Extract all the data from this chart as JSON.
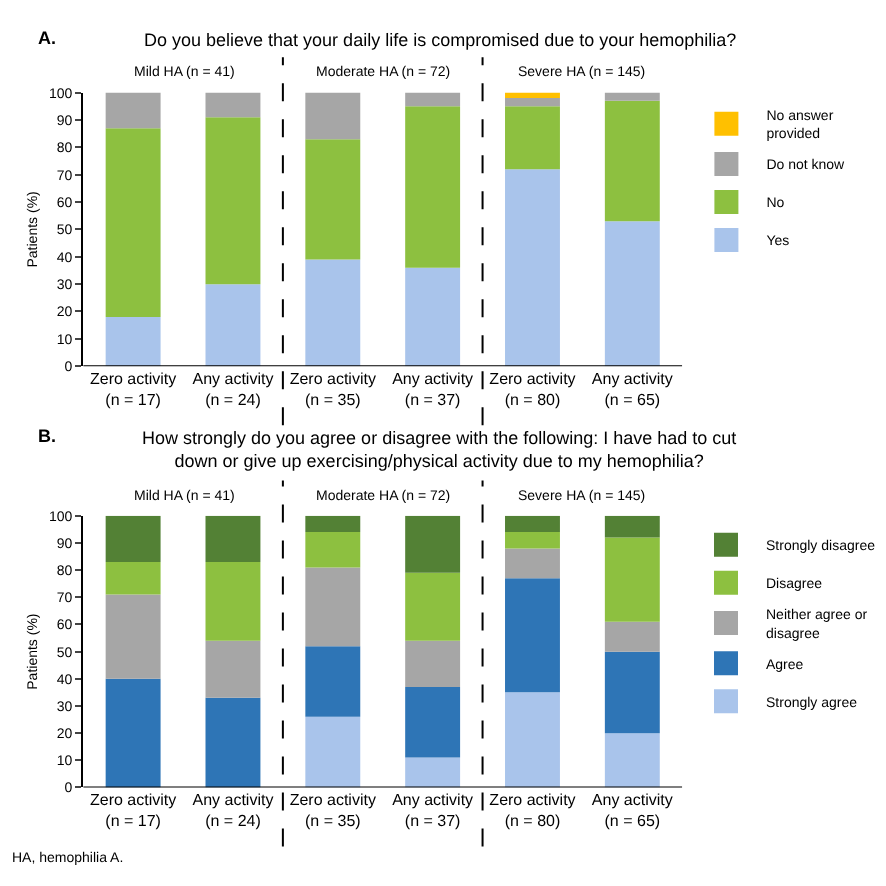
{
  "chart_data": [
    {
      "type": "bar",
      "stacked": true,
      "title": "Do you believe that your daily life is compromised due to your hemophilia?",
      "ylabel": "Patients (%)",
      "categories": [
        "Zero activity\n(n = 17)",
        "Any activity\n(n = 24)",
        "Zero activity\n(n = 35)",
        "Any activity\n(n = 37)",
        "Zero activity\n(n = 80)",
        "Any activity\n(n = 65)"
      ],
      "series": [
        {
          "name": "Yes",
          "color": "#a9c4eb",
          "values": [
            18,
            30,
            39,
            36,
            72,
            53
          ]
        },
        {
          "name": "No",
          "color": "#8dc040",
          "values": [
            69,
            61,
            44,
            59,
            23,
            44
          ]
        },
        {
          "name": "Do not know",
          "color": "#a6a6a6",
          "values": [
            13,
            9,
            17,
            5,
            3,
            3
          ]
        },
        {
          "name": "No answer provided",
          "color": "#ffc000",
          "values": [
            0,
            0,
            0,
            0,
            2,
            0
          ]
        }
      ],
      "ylim": [
        0,
        100
      ],
      "yticks": [
        0,
        10,
        20,
        30,
        40,
        50,
        60,
        70,
        80,
        90,
        100
      ],
      "legend": "right",
      "annotations": [
        "A.",
        "Mild HA (n = 41)",
        "Moderate HA (n = 72)",
        "Severe HA (n = 145)"
      ]
    },
    {
      "type": "bar",
      "stacked": true,
      "title": "How strongly do you agree or disagree with the following: I have had to cut down or give up exercising/physical activity due to my hemophilia?",
      "ylabel": "Patients (%)",
      "categories": [
        "Zero activity\n(n = 17)",
        "Any activity\n(n = 24)",
        "Zero activity\n(n = 35)",
        "Any activity\n(n = 37)",
        "Zero activity\n(n = 80)",
        "Any activity\n(n = 65)"
      ],
      "series": [
        {
          "name": "Strongly agree",
          "color": "#a9c4eb",
          "values": [
            0,
            0,
            26,
            11,
            35,
            20
          ]
        },
        {
          "name": "Agree",
          "color": "#2e75b6",
          "values": [
            40,
            33,
            26,
            26,
            42,
            30
          ]
        },
        {
          "name": "Neither agree or disagree",
          "color": "#a6a6a6",
          "values": [
            31,
            21,
            29,
            17,
            11,
            11
          ]
        },
        {
          "name": "Disagree",
          "color": "#8dc040",
          "values": [
            12,
            29,
            13,
            25,
            6,
            31
          ]
        },
        {
          "name": "Strongly disagree",
          "color": "#538135",
          "values": [
            17,
            17,
            6,
            21,
            6,
            8
          ]
        }
      ],
      "ylim": [
        0,
        100
      ],
      "yticks": [
        0,
        10,
        20,
        30,
        40,
        50,
        60,
        70,
        80,
        90,
        100
      ],
      "legend": "right",
      "annotations": [
        "B.",
        "Mild HA (n = 41)",
        "Moderate HA (n = 72)",
        "Severe HA (n = 145)",
        "HA, hemophilia A."
      ]
    }
  ]
}
